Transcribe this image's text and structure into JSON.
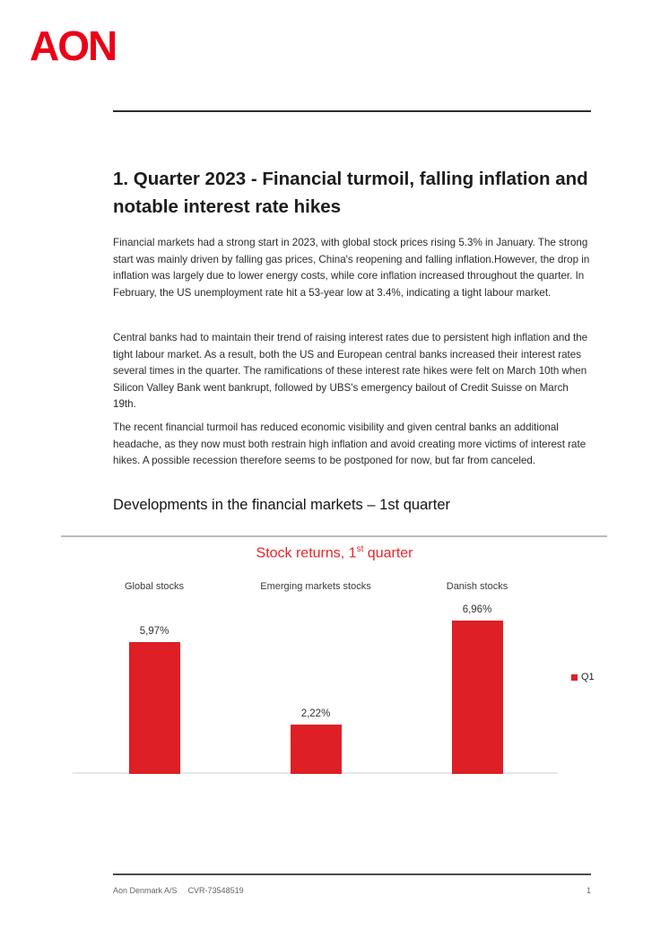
{
  "logo": {
    "text": "AON",
    "color": "#eb0017"
  },
  "heading": "1. Quarter 2023 - Financial turmoil, falling inflation and notable interest rate hikes",
  "paragraphs": [
    "Financial markets had a strong start in 2023, with global stock prices rising 5.3% in January. The strong start was mainly driven by falling gas prices, China's reopening and falling inflation.However, the drop in inflation was largely due to lower energy costs, while core inflation increased throughout the quarter. In February, the US unemployment rate hit a 53-year low at 3.4%, indicating a tight labour market.",
    "Central banks had to maintain their trend of raising interest rates due to persistent high inflation and the tight labour market. As a result, both the US and European central banks increased their interest rates several times in the quarter. The ramifications of these interest rate hikes were felt on March 10th when Silicon Valley Bank went bankrupt, followed by UBS's emergency bailout of Credit Suisse on March 19th.",
    "The recent financial turmoil has reduced economic visibility and given central banks an additional headache, as they now must both restrain high inflation and avoid creating more victims of interest rate hikes. A possible recession therefore seems to be postponed for now, but far from canceled."
  ],
  "subheading": "Developments in the financial markets – 1st quarter",
  "chart_data": {
    "type": "bar",
    "title": "Stock returns, 1st quarter",
    "title_parts": {
      "prefix": "Stock returns, 1",
      "sup": "st",
      "suffix": " quarter"
    },
    "title_color": "#e8252a",
    "categories": [
      "Global stocks",
      "Emerging markets stocks",
      "Danish stocks"
    ],
    "values": [
      5.97,
      2.22,
      6.96
    ],
    "value_labels": [
      "5,97%",
      "2,22%",
      "6,96%"
    ],
    "series_name": "Q1",
    "bar_color": "#de1f26",
    "ylim": [
      0,
      7.5
    ],
    "grid": false,
    "legend_position": "right"
  },
  "footer": {
    "company": "Aon Denmark A/S",
    "cvr": "CVR-73548519",
    "page_number": "1"
  }
}
